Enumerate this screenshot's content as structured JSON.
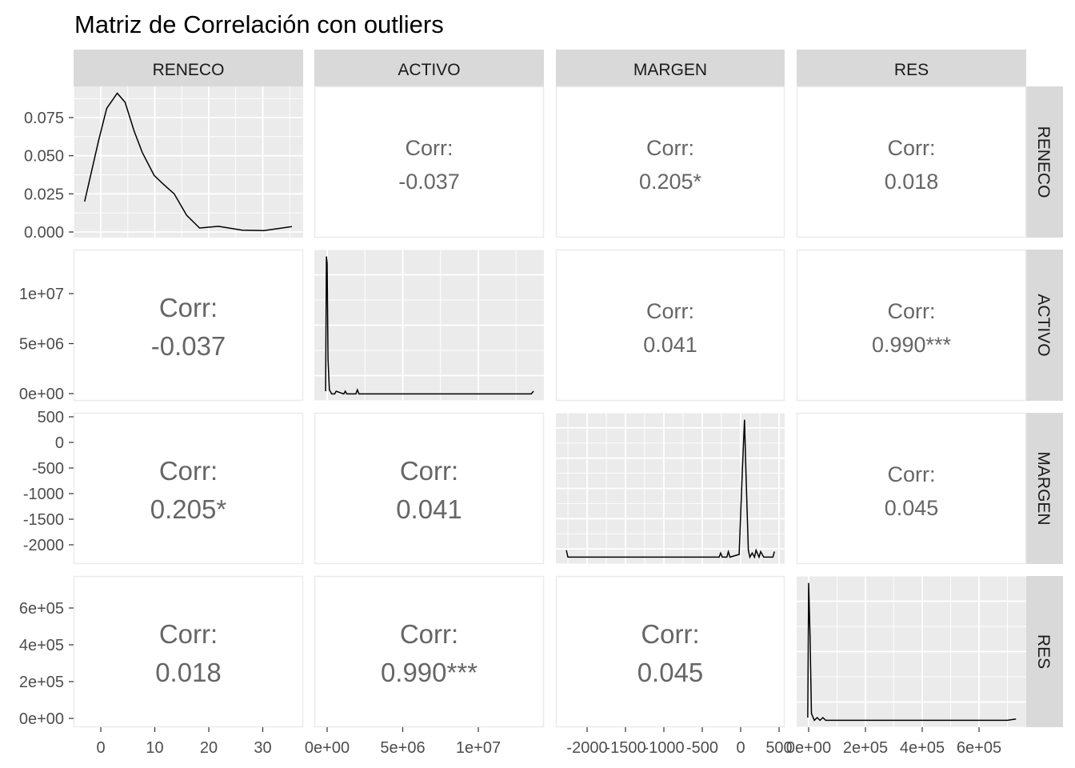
{
  "chart_data": {
    "type": "pairs",
    "title": "Matriz de Correlación con outliers",
    "variables": [
      "RENECO",
      "ACTIVO",
      "MARGEN",
      "RES"
    ],
    "grid": true,
    "corr_label": "Corr:",
    "correlations": [
      {
        "row": "ACTIVO",
        "col": "RENECO",
        "value": "-0.037"
      },
      {
        "row": "MARGEN",
        "col": "RENECO",
        "value": "0.205*"
      },
      {
        "row": "RES",
        "col": "RENECO",
        "value": "0.018"
      },
      {
        "row": "MARGEN",
        "col": "ACTIVO",
        "value": "0.041"
      },
      {
        "row": "RES",
        "col": "ACTIVO",
        "value": "0.990***"
      },
      {
        "row": "RES",
        "col": "MARGEN",
        "value": "0.045"
      }
    ],
    "x_axes": [
      {
        "ticks": [
          0,
          10,
          20,
          30
        ],
        "labels": [
          "0",
          "10",
          "20",
          "30"
        ]
      },
      {
        "ticks": [
          0,
          5000000,
          10000000
        ],
        "labels": [
          "0e+00",
          "5e+06",
          "1e+07"
        ]
      },
      {
        "ticks": [
          -2000,
          -1500,
          -1000,
          -500,
          0,
          500
        ],
        "labels": [
          "-2000",
          "-1500",
          "-1000",
          "-500",
          "0",
          "500"
        ]
      },
      {
        "ticks": [
          0,
          200000,
          400000,
          600000
        ],
        "labels": [
          "0e+00",
          "2e+05",
          "4e+05",
          "6e+05"
        ]
      }
    ],
    "y_axes": [
      {
        "ticks": [
          0,
          0.025,
          0.05,
          0.075
        ],
        "labels": [
          "0.000",
          "0.025",
          "0.050",
          "0.075"
        ]
      },
      {
        "ticks": [
          0,
          5000000,
          10000000
        ],
        "labels": [
          "0e+00",
          "5e+06",
          "1e+07"
        ]
      },
      {
        "ticks": [
          -2000,
          -1500,
          -1000,
          -500,
          0,
          500
        ],
        "labels": [
          "-2000",
          "-1500",
          "-1000",
          "-500",
          "0",
          "500"
        ]
      },
      {
        "ticks": [
          0,
          200000,
          400000,
          600000
        ],
        "labels": [
          "0e+00",
          "2e+05",
          "4e+05",
          "6e+05"
        ]
      }
    ],
    "densities": [
      {
        "variable": "RENECO",
        "scale": "density",
        "x": [
          -3.0,
          -0.4,
          1.1,
          3.05,
          4.5,
          6.2,
          7.7,
          9.9,
          11.7,
          13.6,
          15.9,
          18.3,
          21.8,
          26.2,
          30.2,
          35.4
        ],
        "y": [
          0.02,
          0.06,
          0.081,
          0.091,
          0.085,
          0.066,
          0.052,
          0.037,
          0.031,
          0.025,
          0.011,
          0.0026,
          0.0037,
          0.0012,
          0.0009,
          0.0035
        ]
      },
      {
        "variable": "ACTIVO",
        "scale": "relative",
        "x": [
          -100000,
          -50000,
          0,
          60000,
          150000,
          300000,
          500000,
          600000,
          1100000,
          1200000,
          1300000,
          1900000,
          2000000,
          2100000,
          5000000,
          10000000,
          13500000,
          13650000
        ],
        "y": [
          0.02,
          1.0,
          0.95,
          0.25,
          0.03,
          0.0,
          0.0,
          0.02,
          0.0,
          0.02,
          0.0,
          0.0,
          0.03,
          0.0,
          0.0,
          0.0,
          0.0,
          0.02
        ]
      },
      {
        "variable": "MARGEN",
        "scale": "relative",
        "x": [
          -2270,
          -2250,
          -1000,
          -280,
          -260,
          -240,
          -180,
          -160,
          -140,
          -20,
          20,
          50,
          70,
          100,
          120,
          150,
          180,
          200,
          240,
          260,
          300,
          330,
          420,
          440
        ],
        "y": [
          0.05,
          0.0,
          0.0,
          0.0,
          0.03,
          0.0,
          0.0,
          0.04,
          0.0,
          0.02,
          0.6,
          1.0,
          0.6,
          0.05,
          0.0,
          0.03,
          0.0,
          0.05,
          0.0,
          0.04,
          0.0,
          0.0,
          0.0,
          0.04
        ]
      },
      {
        "variable": "RES",
        "scale": "relative",
        "x": [
          -3000,
          0,
          5000,
          10000,
          20000,
          30000,
          40000,
          50000,
          60000,
          70000,
          200000,
          400000,
          700000,
          730000
        ],
        "y": [
          0.02,
          1.0,
          0.6,
          0.05,
          0.0,
          0.02,
          0.0,
          0.02,
          0.0,
          0.0,
          0.0,
          0.0,
          0.0,
          0.01
        ]
      }
    ]
  }
}
